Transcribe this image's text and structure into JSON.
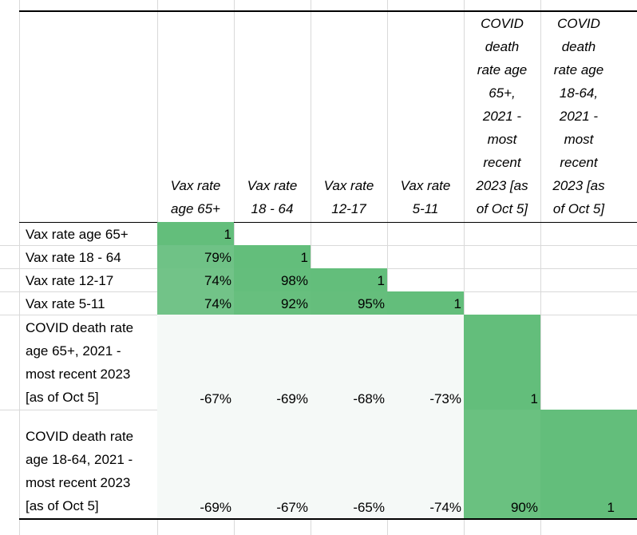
{
  "headers": [
    "Vax rate\nage 65+",
    "Vax rate\n18 - 64",
    "Vax rate\n12-17",
    "Vax rate\n5-11",
    "COVID\ndeath\nrate age\n65+,\n2021 -\nmost\nrecent\n2023 [as\nof Oct 5]",
    "COVID\ndeath\nrate age\n18-64,\n2021 -\nmost\nrecent\n2023 [as\nof Oct 5]"
  ],
  "rows": [
    {
      "label": "Vax rate age 65+",
      "values": [
        "1"
      ]
    },
    {
      "label": "Vax rate 18 - 64",
      "values": [
        "79%",
        "1"
      ]
    },
    {
      "label": "Vax rate 12-17",
      "values": [
        "74%",
        "98%",
        "1"
      ]
    },
    {
      "label": "Vax rate 5-11",
      "values": [
        "74%",
        "92%",
        "95%",
        "1"
      ]
    },
    {
      "label": "COVID death rate\nage 65+, 2021 -\nmost recent 2023\n[as of Oct 5]",
      "values": [
        "-67%",
        "-69%",
        "-68%",
        "-73%",
        "1"
      ]
    },
    {
      "label": "COVID death rate\nage 18-64, 2021 -\nmost recent 2023\n[as of Oct 5]",
      "values": [
        "-69%",
        "-67%",
        "-65%",
        "-74%",
        "90%",
        "1"
      ]
    }
  ],
  "colors": {
    "high_green": "#63be7b",
    "mid_green": "#72c388",
    "low_white": "#f5f9f7",
    "gridline": "#d9d9d9"
  }
}
